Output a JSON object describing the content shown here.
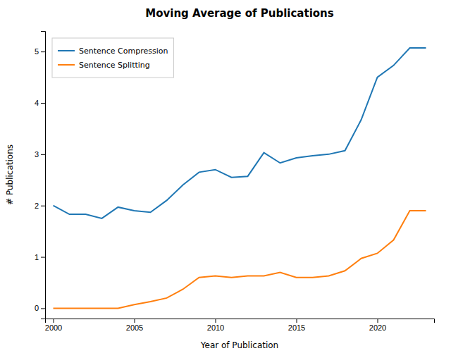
{
  "chart_data": {
    "type": "line",
    "title": "Moving Average of Publications",
    "xlabel": "Year of Publication",
    "ylabel": "# Publications",
    "x": [
      2000,
      2001,
      2002,
      2003,
      2004,
      2005,
      2006,
      2007,
      2008,
      2009,
      2010,
      2011,
      2012,
      2013,
      2014,
      2015,
      2016,
      2017,
      2018,
      2019,
      2020,
      2021,
      2022,
      2023
    ],
    "series": [
      {
        "name": "Sentence Compression",
        "color": "#1f77b4",
        "values": [
          2.0,
          1.83,
          1.83,
          1.75,
          1.97,
          1.9,
          1.87,
          2.1,
          2.4,
          2.65,
          2.7,
          2.55,
          2.57,
          3.03,
          2.83,
          2.93,
          2.97,
          3.0,
          3.07,
          3.67,
          4.5,
          4.73,
          5.07,
          5.07
        ]
      },
      {
        "name": "Sentence Splitting",
        "color": "#ff7f0e",
        "values": [
          0.0,
          0.0,
          0.0,
          0.0,
          0.0,
          0.07,
          0.13,
          0.2,
          0.37,
          0.6,
          0.63,
          0.6,
          0.63,
          0.63,
          0.7,
          0.6,
          0.6,
          0.63,
          0.73,
          0.97,
          1.07,
          1.33,
          1.9,
          1.9
        ]
      }
    ],
    "xlim": [
      1999.5,
      2023.5
    ],
    "ylim": [
      -0.2,
      5.4
    ],
    "xticks": [
      2000,
      2005,
      2010,
      2015,
      2020
    ],
    "yticks": [
      0,
      1,
      2,
      3,
      4,
      5
    ],
    "legend": "upper left",
    "grid": false
  }
}
